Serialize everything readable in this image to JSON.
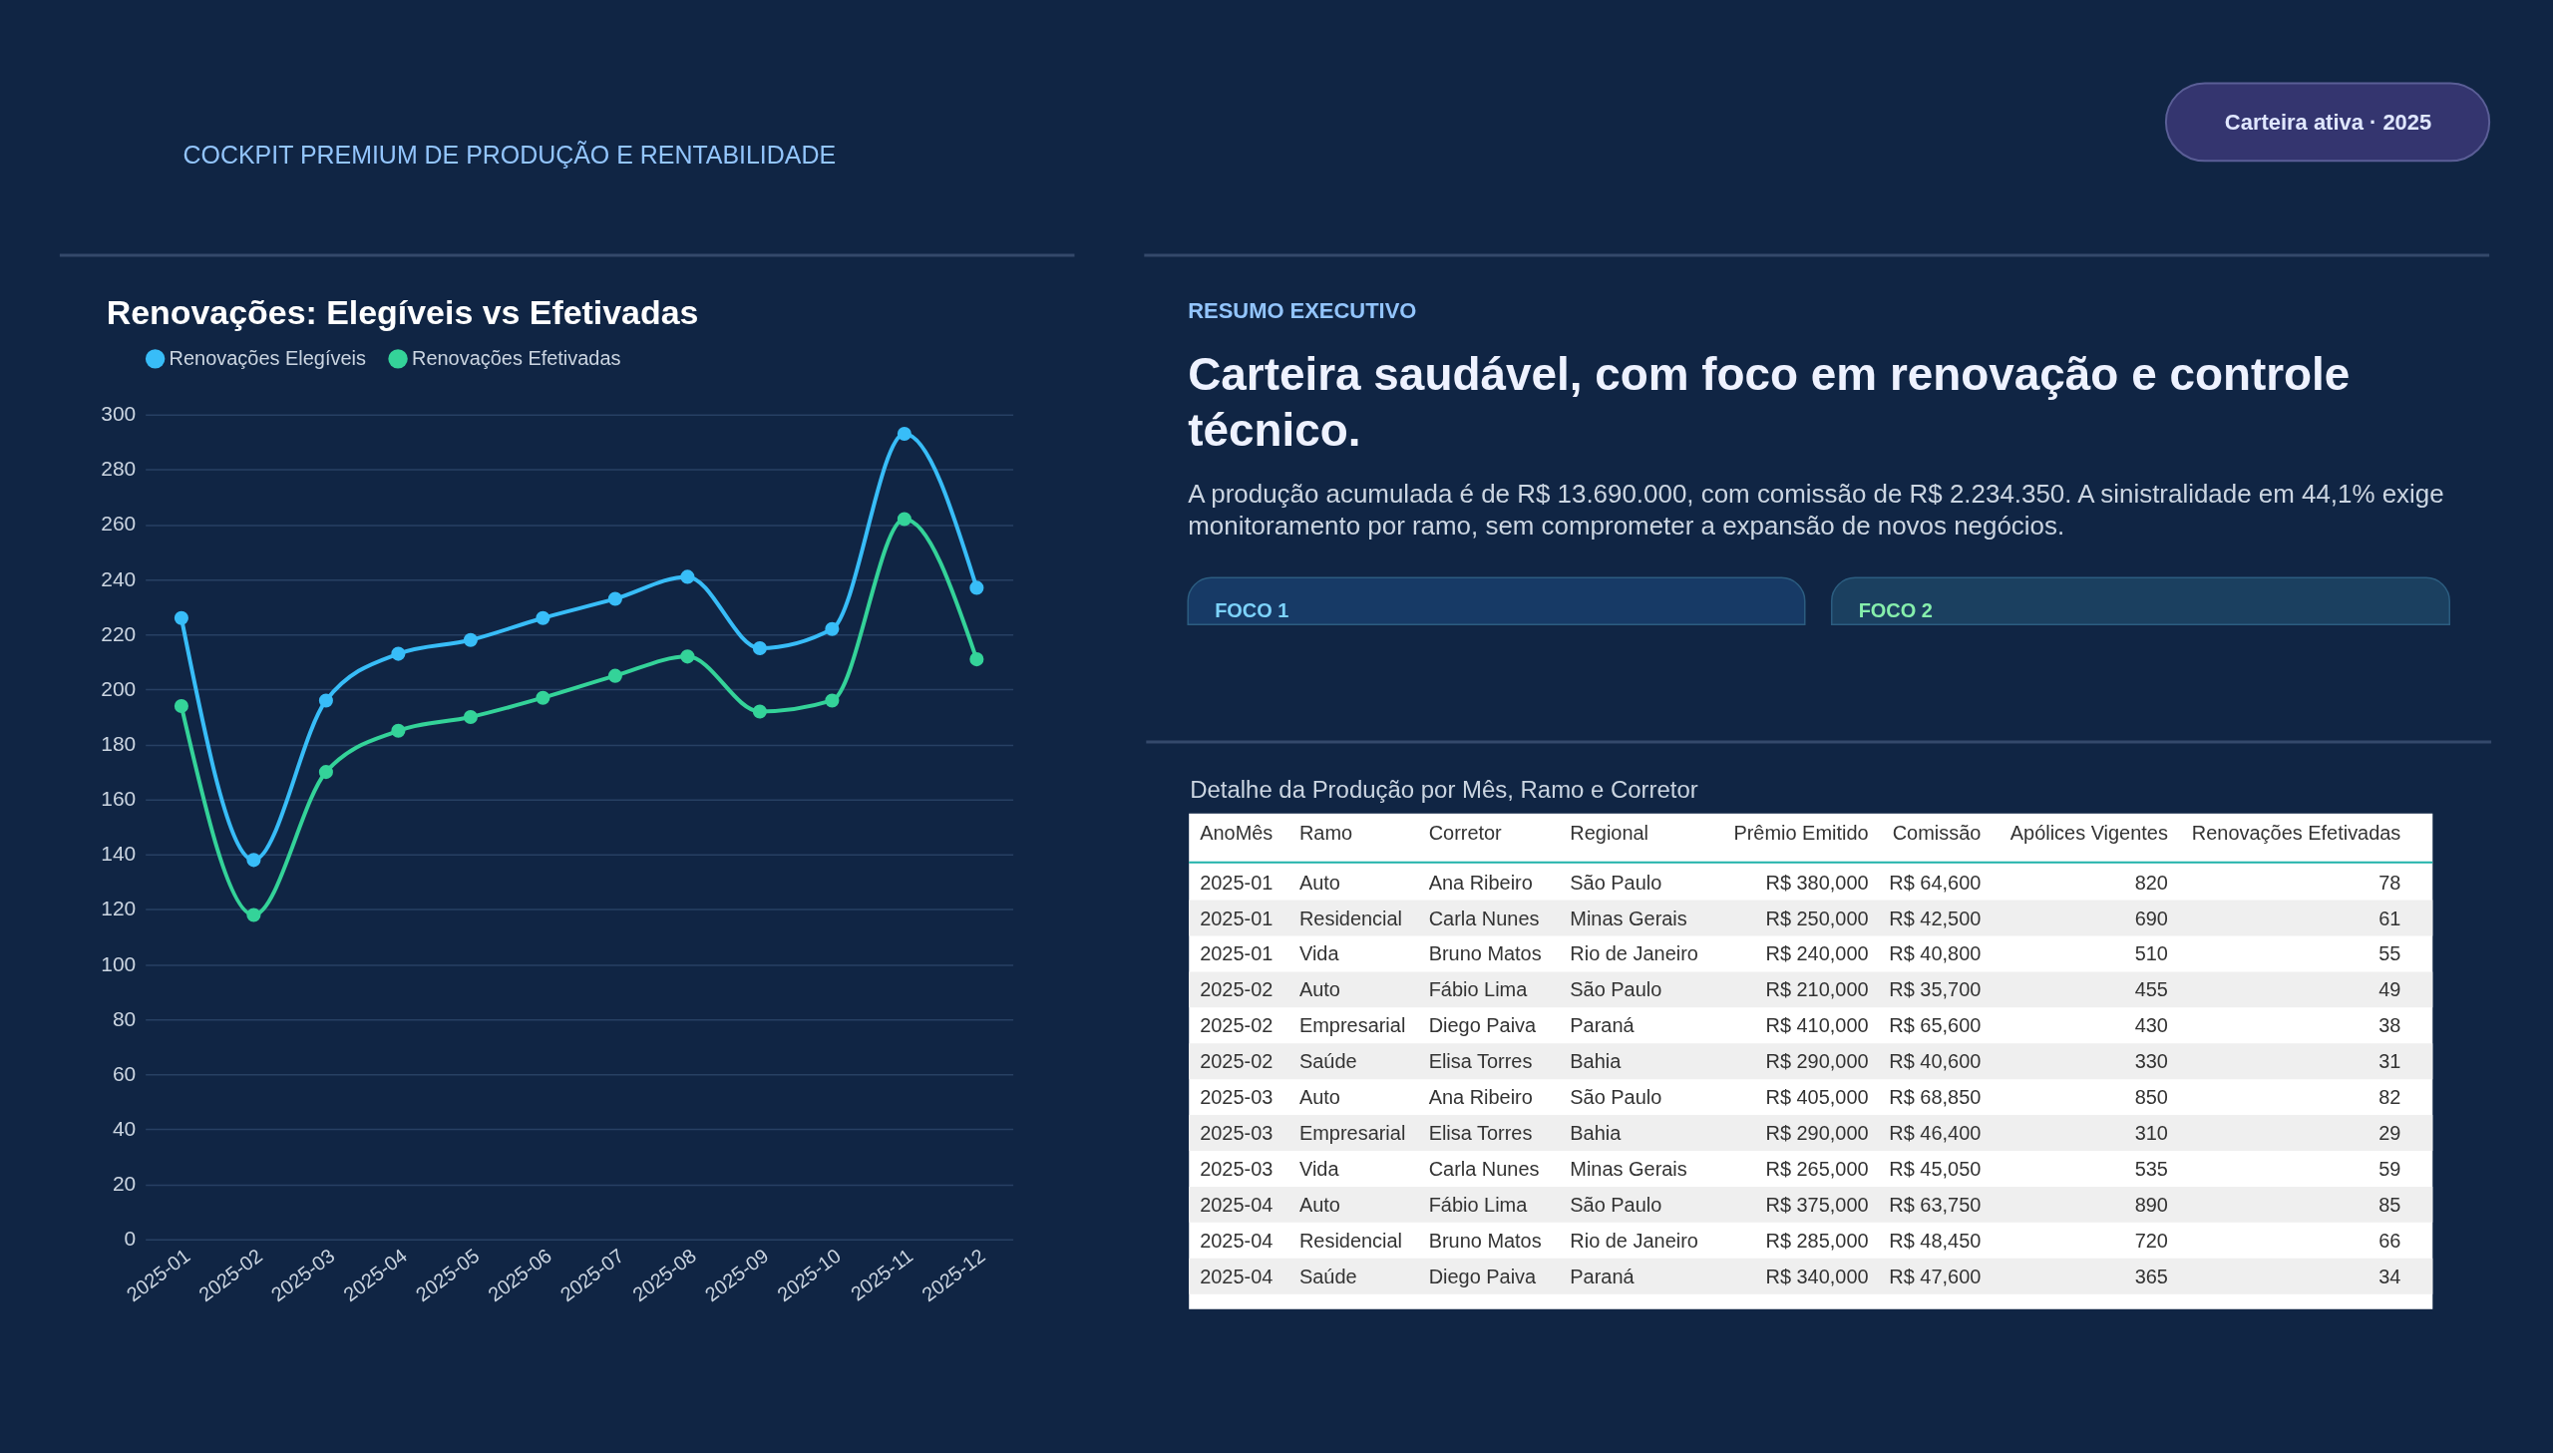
{
  "chart_data": [
    {
      "type": "other",
      "subtitle": "COCKPIT PREMIUM DE PRODUÇÃO E RENTABILIDADE",
      "annotations": [
        "Carteira ativa · 2025"
      ]
    },
    {
      "type": "line",
      "title": "Renovações: Elegíveis vs Efetivadas",
      "categories": [
        "2025-01",
        "2025-02",
        "2025-03",
        "2025-04",
        "2025-05",
        "2025-06",
        "2025-07",
        "2025-08",
        "2025-09",
        "2025-10",
        "2025-11",
        "2025-12"
      ],
      "series": [
        {
          "name": "Renovações Elegíveis",
          "color": "#38bdf8",
          "values": [
            226,
            138,
            196,
            213,
            218,
            226,
            233,
            241,
            215,
            222,
            293,
            237
          ]
        },
        {
          "name": "Renovações Efetivadas",
          "color": "#34d399",
          "values": [
            194,
            118,
            170,
            185,
            190,
            197,
            205,
            212,
            192,
            196,
            262,
            211
          ]
        }
      ],
      "ylim": [
        0,
        300
      ],
      "yticks": [
        0,
        20,
        40,
        60,
        80,
        100,
        120,
        140,
        160,
        180,
        200,
        220,
        240,
        260,
        280,
        300
      ],
      "grid": "y",
      "legend": "top left",
      "marker": "circle"
    },
    {
      "type": "other",
      "subtitle": "RESUMO EXECUTIVO",
      "title": "Carteira saudável, com foco em renovação e controle técnico.",
      "annotations": [
        "A produção acumulada é de R$ 13.690.000, com comissão de R$ 2.234.350. A sinistralidade em 44,1% exige monitoramento por ramo, sem comprometer a expansão de novos negócios.",
        "FOCO 1",
        "FOCO 2"
      ]
    },
    {
      "type": "other",
      "title": "Detalhe da Produção por Mês, Ramo e Corretor",
      "categories": [
        "AnoMês",
        "Ramo",
        "Corretor",
        "Regional",
        "Prêmio Emitido",
        "Comissão",
        "Apólices Vigentes",
        "Renovações Efetivadas"
      ],
      "cell_labels": [
        [
          "2025-01",
          "Auto",
          "Ana Ribeiro",
          "São Paulo",
          "R$ 380,000",
          "R$ 64,600",
          "820",
          "78"
        ],
        [
          "2025-01",
          "Residencial",
          "Carla Nunes",
          "Minas Gerais",
          "R$ 250,000",
          "R$ 42,500",
          "690",
          "61"
        ],
        [
          "2025-01",
          "Vida",
          "Bruno Matos",
          "Rio de Janeiro",
          "R$ 240,000",
          "R$ 40,800",
          "510",
          "55"
        ],
        [
          "2025-02",
          "Auto",
          "Fábio Lima",
          "São Paulo",
          "R$ 210,000",
          "R$ 35,700",
          "455",
          "49"
        ],
        [
          "2025-02",
          "Empresarial",
          "Diego Paiva",
          "Paraná",
          "R$ 410,000",
          "R$ 65,600",
          "430",
          "38"
        ],
        [
          "2025-02",
          "Saúde",
          "Elisa Torres",
          "Bahia",
          "R$ 290,000",
          "R$ 40,600",
          "330",
          "31"
        ],
        [
          "2025-03",
          "Auto",
          "Ana Ribeiro",
          "São Paulo",
          "R$ 405,000",
          "R$ 68,850",
          "850",
          "82"
        ],
        [
          "2025-03",
          "Empresarial",
          "Elisa Torres",
          "Bahia",
          "R$ 290,000",
          "R$ 46,400",
          "310",
          "29"
        ],
        [
          "2025-03",
          "Vida",
          "Carla Nunes",
          "Minas Gerais",
          "R$ 265,000",
          "R$ 45,050",
          "535",
          "59"
        ],
        [
          "2025-04",
          "Auto",
          "Fábio Lima",
          "São Paulo",
          "R$ 375,000",
          "R$ 63,750",
          "890",
          "85"
        ],
        [
          "2025-04",
          "Residencial",
          "Bruno Matos",
          "Rio de Janeiro",
          "R$ 285,000",
          "R$ 48,450",
          "720",
          "66"
        ],
        [
          "2025-04",
          "Saúde",
          "Diego Paiva",
          "Paraná",
          "R$ 340,000",
          "R$ 47,600",
          "365",
          "34"
        ]
      ]
    }
  ]
}
